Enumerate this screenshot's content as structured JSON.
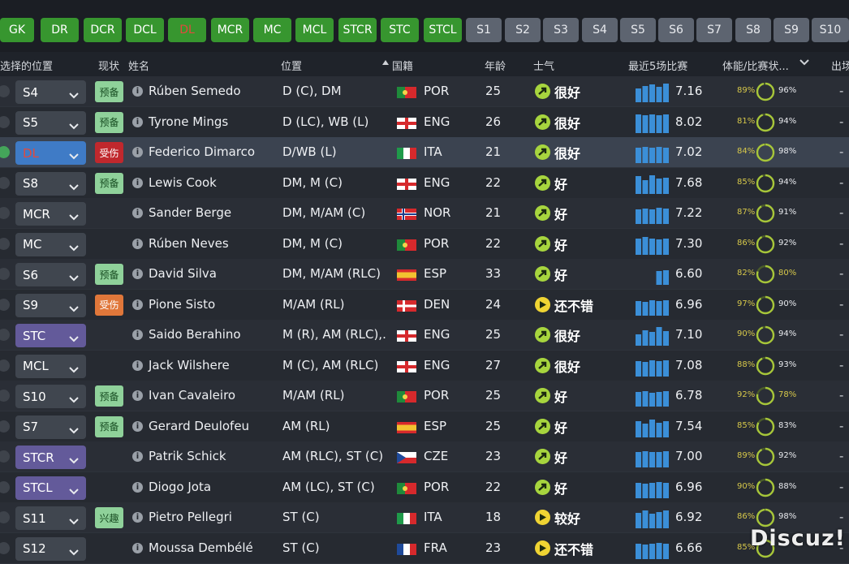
{
  "position_buttons": [
    {
      "label": "GK",
      "style": "green"
    },
    {
      "label": "DR",
      "style": "green"
    },
    {
      "label": "DCR",
      "style": "green"
    },
    {
      "label": "DCL",
      "style": "green"
    },
    {
      "label": "DL",
      "style": "green",
      "active": true
    },
    {
      "label": "MCR",
      "style": "green"
    },
    {
      "label": "MC",
      "style": "green"
    },
    {
      "label": "MCL",
      "style": "green"
    },
    {
      "label": "STCR",
      "style": "green"
    },
    {
      "label": "STC",
      "style": "green"
    },
    {
      "label": "STCL",
      "style": "green"
    },
    {
      "label": "S1",
      "style": "gray"
    },
    {
      "label": "S2",
      "style": "gray"
    },
    {
      "label": "S3",
      "style": "gray"
    },
    {
      "label": "S4",
      "style": "gray"
    },
    {
      "label": "S5",
      "style": "gray"
    },
    {
      "label": "S6",
      "style": "gray"
    },
    {
      "label": "S7",
      "style": "gray"
    },
    {
      "label": "S8",
      "style": "gray"
    },
    {
      "label": "S9",
      "style": "gray"
    },
    {
      "label": "S10",
      "style": "gray"
    }
  ],
  "headers": {
    "selected_position": "选择的位置",
    "status": "现状",
    "name": "姓名",
    "position": "位置",
    "nationality": "国籍",
    "age": "年龄",
    "morale": "士气",
    "last5": "最近5场比赛",
    "condition": "体能/比赛状...",
    "appearances": "出场"
  },
  "colors": {
    "accent_green": "#37962f",
    "selected_red": "#e14a3d",
    "bar_blue": "#3b8fd8"
  },
  "players": [
    {
      "role": "S4",
      "role_style": "gray",
      "badge": "预备",
      "badge_style": "reserve",
      "name": "Rúben Semedo",
      "position": "D (C), DM",
      "flag": "por",
      "nat": "POR",
      "age": "25",
      "morale": "很好",
      "morale_icon": "up",
      "form": [
        0.7,
        0.85,
        0.9,
        0.8,
        0.95
      ],
      "rating": "7.16",
      "fitness": "89%",
      "sharpness": "96%",
      "sharp_frac": 0.96,
      "appearances": "-"
    },
    {
      "role": "S5",
      "role_style": "gray",
      "badge": "预备",
      "badge_style": "reserve",
      "name": "Tyrone Mings",
      "position": "D (LC), WB (L)",
      "flag": "eng",
      "nat": "ENG",
      "age": "26",
      "morale": "很好",
      "morale_icon": "up",
      "form": [
        0.95,
        0.9,
        0.95,
        0.9,
        0.95
      ],
      "rating": "8.02",
      "fitness": "81%",
      "sharpness": "94%",
      "sharp_frac": 0.94,
      "appearances": "-"
    },
    {
      "role": "DL",
      "role_style": "blue",
      "badge": "受伤",
      "badge_style": "injury",
      "name": "Federico Dimarco",
      "position": "D/WB (L)",
      "flag": "ita",
      "nat": "ITA",
      "age": "21",
      "morale": "很好",
      "morale_icon": "up",
      "form": [
        0.8,
        0.85,
        0.8,
        0.85,
        0.8
      ],
      "rating": "7.02",
      "fitness": "84%",
      "sharpness": "98%",
      "sharp_frac": 0.98,
      "appearances": "-",
      "checked": true
    },
    {
      "role": "S8",
      "role_style": "gray",
      "badge": "预备",
      "badge_style": "reserve",
      "name": "Lewis Cook",
      "position": "DM, M (C)",
      "flag": "eng",
      "nat": "ENG",
      "age": "22",
      "morale": "好",
      "morale_icon": "up",
      "form": [
        0.9,
        0.7,
        0.95,
        0.8,
        0.85
      ],
      "rating": "7.68",
      "fitness": "85%",
      "sharpness": "94%",
      "sharp_frac": 0.94,
      "appearances": "-"
    },
    {
      "role": "MCR",
      "role_style": "gray",
      "badge": "",
      "badge_style": "",
      "name": "Sander Berge",
      "position": "DM, M/AM (C)",
      "flag": "nor",
      "nat": "NOR",
      "age": "21",
      "morale": "好",
      "morale_icon": "up",
      "form": [
        0.75,
        0.8,
        0.75,
        0.85,
        0.8
      ],
      "rating": "7.22",
      "fitness": "87%",
      "sharpness": "91%",
      "sharp_frac": 0.91,
      "appearances": "-"
    },
    {
      "role": "MC",
      "role_style": "gray",
      "badge": "",
      "badge_style": "",
      "name": "Rúben Neves",
      "position": "DM, M (C)",
      "flag": "por",
      "nat": "POR",
      "age": "22",
      "morale": "好",
      "morale_icon": "up",
      "form": [
        0.85,
        0.9,
        0.85,
        0.8,
        0.85
      ],
      "rating": "7.30",
      "fitness": "86%",
      "sharpness": "92%",
      "sharp_frac": 0.92,
      "appearances": "-"
    },
    {
      "role": "S6",
      "role_style": "gray",
      "badge": "预备",
      "badge_style": "reserve",
      "name": "David Silva",
      "position": "DM, M/AM (RLC)",
      "flag": "esp",
      "nat": "ESP",
      "age": "33",
      "morale": "好",
      "morale_icon": "up",
      "form": [
        0,
        0,
        0,
        0.7,
        0.75
      ],
      "rating": "6.60",
      "fitness": "82%",
      "sharpness": "80%",
      "sharp_frac": 0.8,
      "sharp_warn": true,
      "appearances": "-"
    },
    {
      "role": "S9",
      "role_style": "gray",
      "badge": "受伤",
      "badge_style": "susp",
      "name": "Pione Sisto",
      "position": "M/AM (RL)",
      "flag": "den",
      "nat": "DEN",
      "age": "24",
      "morale": "还不错",
      "morale_icon": "right",
      "form": [
        0.75,
        0.7,
        0.8,
        0.75,
        0.8
      ],
      "rating": "6.96",
      "fitness": "97%",
      "sharpness": "90%",
      "sharp_frac": 0.9,
      "appearances": "-"
    },
    {
      "role": "STC",
      "role_style": "purple",
      "badge": "",
      "badge_style": "",
      "name": "Saido Berahino",
      "position": "M (R), AM (RLC),...",
      "flag": "eng",
      "nat": "ENG",
      "age": "25",
      "morale": "很好",
      "morale_icon": "up",
      "form": [
        0.6,
        0.8,
        0.7,
        0.95,
        0.75
      ],
      "rating": "7.10",
      "fitness": "90%",
      "sharpness": "94%",
      "sharp_frac": 0.94,
      "appearances": "-"
    },
    {
      "role": "MCL",
      "role_style": "gray",
      "badge": "",
      "badge_style": "",
      "name": "Jack Wilshere",
      "position": "M (C), AM (RLC)",
      "flag": "eng",
      "nat": "ENG",
      "age": "27",
      "morale": "很好",
      "morale_icon": "up",
      "form": [
        0.8,
        0.75,
        0.85,
        0.8,
        0.85
      ],
      "rating": "7.08",
      "fitness": "88%",
      "sharpness": "93%",
      "sharp_frac": 0.93,
      "appearances": "-"
    },
    {
      "role": "S10",
      "role_style": "gray",
      "badge": "预备",
      "badge_style": "reserve",
      "name": "Ivan Cavaleiro",
      "position": "M/AM (RL)",
      "flag": "por",
      "nat": "POR",
      "age": "25",
      "morale": "好",
      "morale_icon": "up",
      "form": [
        0.75,
        0.8,
        0.7,
        0.75,
        0.8
      ],
      "rating": "6.78",
      "fitness": "92%",
      "sharpness": "78%",
      "sharp_frac": 0.78,
      "sharp_warn": true,
      "appearances": "-"
    },
    {
      "role": "S7",
      "role_style": "gray",
      "badge": "预备",
      "badge_style": "reserve",
      "name": "Gerard Deulofeu",
      "position": "AM (RL)",
      "flag": "esp",
      "nat": "ESP",
      "age": "25",
      "morale": "好",
      "morale_icon": "up",
      "form": [
        0.85,
        0.7,
        0.9,
        0.75,
        0.85
      ],
      "rating": "7.54",
      "fitness": "85%",
      "sharpness": "83%",
      "sharp_frac": 0.83,
      "appearances": "-"
    },
    {
      "role": "STCR",
      "role_style": "purple",
      "badge": "",
      "badge_style": "",
      "name": "Patrik Schick",
      "position": "AM (RLC), ST (C)",
      "flag": "cze",
      "nat": "CZE",
      "age": "23",
      "morale": "好",
      "morale_icon": "up",
      "form": [
        0.8,
        0.85,
        0.8,
        0.8,
        0.85
      ],
      "rating": "7.00",
      "fitness": "89%",
      "sharpness": "92%",
      "sharp_frac": 0.92,
      "appearances": "-"
    },
    {
      "role": "STCL",
      "role_style": "purple",
      "badge": "",
      "badge_style": "",
      "name": "Diogo Jota",
      "position": "AM (LC), ST (C)",
      "flag": "por",
      "nat": "POR",
      "age": "22",
      "morale": "好",
      "morale_icon": "up",
      "form": [
        0.8,
        0.75,
        0.8,
        0.85,
        0.8
      ],
      "rating": "6.96",
      "fitness": "90%",
      "sharpness": "88%",
      "sharp_frac": 0.88,
      "appearances": "-"
    },
    {
      "role": "S11",
      "role_style": "gray",
      "badge": "兴趣",
      "badge_style": "interest",
      "name": "Pietro Pellegri",
      "position": "ST (C)",
      "flag": "ita",
      "nat": "ITA",
      "age": "18",
      "morale": "较好",
      "morale_icon": "right",
      "form": [
        0.8,
        0.9,
        0.75,
        0.85,
        0.9
      ],
      "rating": "6.92",
      "fitness": "86%",
      "sharpness": "98%",
      "sharp_frac": 0.98,
      "appearances": "-"
    },
    {
      "role": "S12",
      "role_style": "gray",
      "badge": "",
      "badge_style": "",
      "name": "Moussa Dembélé",
      "position": "ST (C)",
      "flag": "fra",
      "nat": "FRA",
      "age": "23",
      "morale": "还不错",
      "morale_icon": "right",
      "form": [
        0.8,
        0.75,
        0.8,
        0.85,
        0.8
      ],
      "rating": "6.66",
      "fitness": "85%",
      "sharpness": "",
      "sharp_frac": 0.85,
      "appearances": "-"
    }
  ],
  "watermark": "Discuz!"
}
